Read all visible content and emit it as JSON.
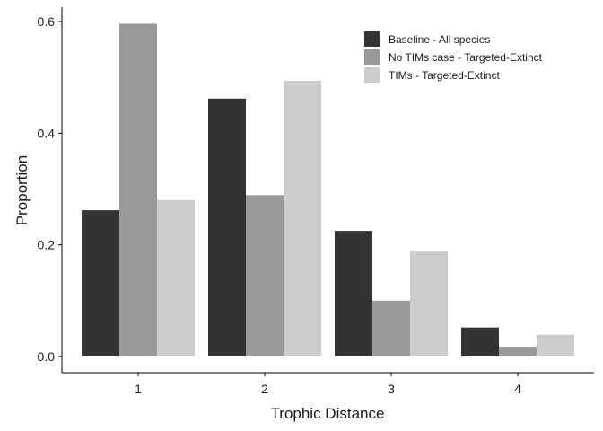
{
  "chart_data": {
    "type": "bar",
    "categories": [
      "1",
      "2",
      "3",
      "4"
    ],
    "xlabel": "Trophic Distance",
    "ylabel": "Proportion",
    "ylim": [
      -0.02,
      0.62
    ],
    "yticks": [
      0.0,
      0.2,
      0.4,
      0.6
    ],
    "ytick_labels": [
      "0.0",
      "0.2",
      "0.4",
      "0.6"
    ],
    "grid": false,
    "legend_position": "top-right",
    "series": [
      {
        "name": "Baseline - All species",
        "color": "#333333",
        "values": [
          0.262,
          0.462,
          0.225,
          0.052
        ]
      },
      {
        "name": "No TIMs case - Targeted-Extinct",
        "color": "#999999",
        "values": [
          0.596,
          0.289,
          0.1,
          0.016
        ]
      },
      {
        "name": "TIMs - Targeted-Extinct",
        "color": "#cccccc",
        "values": [
          0.28,
          0.494,
          0.188,
          0.039
        ]
      }
    ]
  }
}
